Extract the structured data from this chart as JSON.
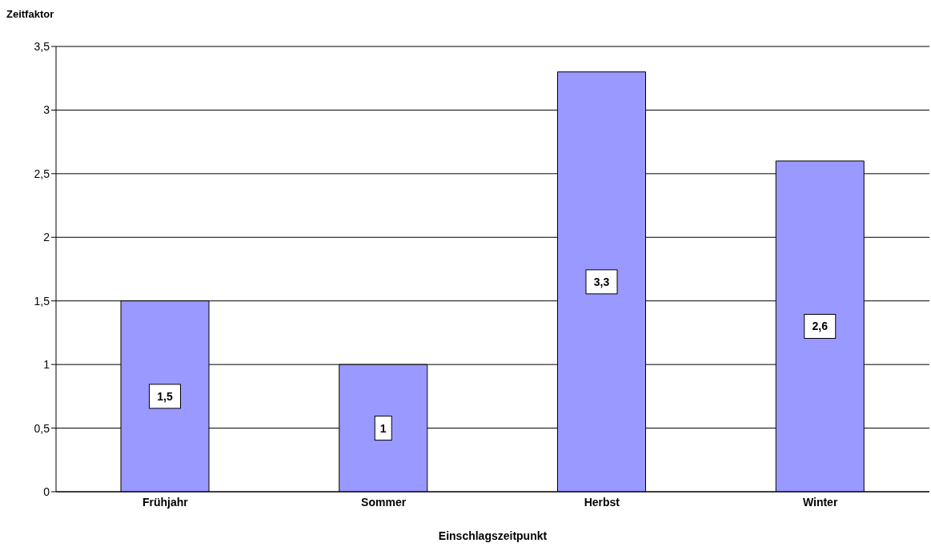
{
  "chart_data": {
    "type": "bar",
    "xlabel": "Einschlagszeitpunkt",
    "ylabel": "Zeitfaktor",
    "categories": [
      "Frühjahr",
      "Sommer",
      "Herbst",
      "Winter"
    ],
    "values": [
      1.5,
      1,
      3.3,
      2.6
    ],
    "color": "#9999ff",
    "value_labels": [
      "1,5",
      "1",
      "3,3",
      "2,6"
    ],
    "ylim": [
      0,
      3.5
    ],
    "yticks": [
      0,
      {
        "value": 0.5,
        "label": "0,5"
      },
      1,
      {
        "value": 1.5,
        "label": "1,5"
      },
      2,
      {
        "value": 2.5,
        "label": "2,5"
      },
      3,
      {
        "value": 3.5,
        "label": "3,5"
      }
    ],
    "grid": "y"
  }
}
